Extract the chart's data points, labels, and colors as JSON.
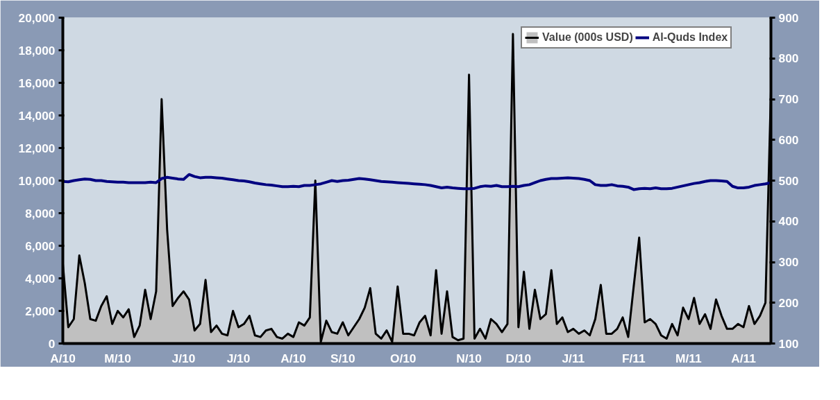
{
  "chart_data": {
    "type": "line",
    "categories": [
      "A/10",
      null,
      null,
      null,
      null,
      null,
      null,
      null,
      null,
      null,
      "M/10",
      null,
      null,
      null,
      null,
      null,
      null,
      null,
      null,
      null,
      null,
      null,
      "J/10",
      null,
      null,
      null,
      null,
      null,
      null,
      null,
      null,
      null,
      "J/10",
      null,
      null,
      null,
      null,
      null,
      null,
      null,
      null,
      null,
      "A/10",
      null,
      null,
      null,
      null,
      null,
      null,
      null,
      null,
      "S/10",
      null,
      null,
      null,
      null,
      null,
      null,
      null,
      null,
      null,
      null,
      "O/10",
      null,
      null,
      null,
      null,
      null,
      null,
      null,
      null,
      null,
      null,
      null,
      "N/10",
      null,
      null,
      null,
      null,
      null,
      null,
      null,
      null,
      "D/10",
      null,
      null,
      null,
      null,
      null,
      null,
      null,
      null,
      null,
      "J/11",
      null,
      null,
      null,
      null,
      null,
      null,
      null,
      null,
      null,
      null,
      "F/11",
      null,
      null,
      null,
      null,
      null,
      null,
      null,
      null,
      null,
      "M/11",
      null,
      null,
      null,
      null,
      null,
      null,
      null,
      null,
      null,
      "A/11",
      null,
      null,
      null,
      null,
      null
    ],
    "series": [
      {
        "name": "Value (000s USD)",
        "type": "area",
        "color": "#c0c0c0",
        "values": [
          4900,
          1000,
          1500,
          5400,
          3700,
          1500,
          1400,
          2300,
          2900,
          1200,
          2000,
          1600,
          2100,
          400,
          1100,
          3300,
          1500,
          3200,
          15000,
          7000,
          2300,
          2800,
          3200,
          2700,
          800,
          1200,
          3900,
          700,
          1100,
          600,
          500,
          2000,
          1000,
          1200,
          1700,
          500,
          400,
          800,
          900,
          400,
          300,
          600,
          400,
          1300,
          1100,
          1600,
          10000,
          100,
          1400,
          700,
          600,
          1300,
          500,
          1000,
          1500,
          2200,
          3400,
          600,
          300,
          800,
          100,
          3500,
          600,
          600,
          500,
          1300,
          1700,
          500,
          4500,
          600,
          3200,
          400,
          200,
          300,
          16500,
          300,
          900,
          300,
          1500,
          1200,
          700,
          1200,
          19000,
          1000,
          4400,
          900,
          3300,
          1500,
          1800,
          4500,
          1200,
          1600,
          700,
          900,
          600,
          800,
          500,
          1500,
          3600,
          600,
          600,
          900,
          1600,
          400,
          3500,
          6500,
          1300,
          1500,
          1200,
          500,
          300,
          1200,
          500,
          2200,
          1500,
          2800,
          1200,
          1800,
          900,
          2700,
          1700,
          900,
          900,
          1200,
          1000,
          2300,
          1200,
          1700,
          2500,
          15500
        ]
      },
      {
        "name": "Al-Quds Index",
        "axis": "y2",
        "color": "#000080",
        "values": [
          498,
          497,
          500,
          502,
          504,
          503,
          500,
          500,
          498,
          497,
          496,
          496,
          495,
          495,
          495,
          495,
          496,
          495,
          505,
          508,
          506,
          504,
          503,
          515,
          510,
          507,
          508,
          508,
          507,
          506,
          504,
          502,
          500,
          499,
          497,
          494,
          492,
          490,
          489,
          487,
          485,
          485,
          486,
          485,
          488,
          488,
          490,
          492,
          496,
          500,
          498,
          500,
          501,
          503,
          505,
          504,
          502,
          500,
          498,
          497,
          496,
          495,
          494,
          493,
          492,
          491,
          490,
          488,
          485,
          482,
          484,
          482,
          481,
          480,
          480,
          481,
          485,
          487,
          486,
          488,
          485,
          485,
          486,
          485,
          488,
          490,
          495,
          500,
          503,
          505,
          505,
          506,
          507,
          506,
          505,
          503,
          500,
          490,
          488,
          488,
          490,
          487,
          486,
          484,
          478,
          480,
          481,
          480,
          482,
          480,
          480,
          481,
          484,
          487,
          490,
          493,
          495,
          498,
          500,
          500,
          499,
          498,
          486,
          482,
          482,
          484,
          488,
          490,
          492,
          495
        ]
      }
    ],
    "ylim": [
      0,
      20000
    ],
    "yticks": [
      {
        "value": 0,
        "label": "0"
      },
      {
        "value": 2000,
        "label": "2,000"
      },
      {
        "value": 4000,
        "label": "4,000"
      },
      {
        "value": 6000,
        "label": "6,000"
      },
      {
        "value": 8000,
        "label": "8,000"
      },
      {
        "value": 10000,
        "label": "10,000"
      },
      {
        "value": 12000,
        "label": "12,000"
      },
      {
        "value": 14000,
        "label": "14,000"
      },
      {
        "value": 16000,
        "label": "16,000"
      },
      {
        "value": 18000,
        "label": "18,000"
      },
      {
        "value": 20000,
        "label": "20,000"
      }
    ],
    "y2lim": [
      100,
      900
    ],
    "y2ticks": [
      100,
      200,
      300,
      400,
      500,
      600,
      700,
      800,
      900
    ],
    "grid": false,
    "legend": "top right",
    "marker": "none",
    "line_style": "solid"
  }
}
